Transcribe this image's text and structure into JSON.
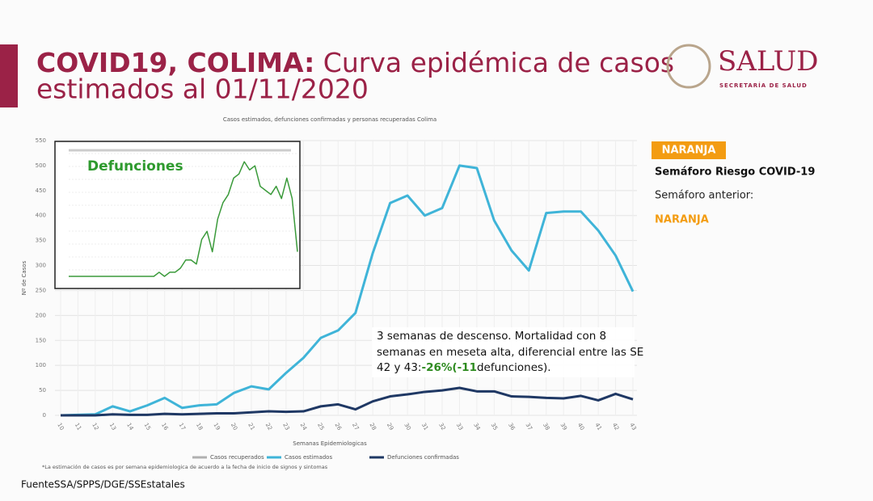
{
  "slide": {
    "title_bold": "COVID19, COLIMA:",
    "title_rest": " Curva epidémica de casos",
    "title_line2": "estimados al 01/11/2020",
    "logo": "SALUD",
    "logo_sub": "SECRETARÍA DE SALUD",
    "badge": "NARANJA",
    "semaforo": "Semáforo Riesgo COVID-19",
    "anterior": "Semáforo anterior:",
    "anterior_value": "NARANJA",
    "annotation": {
      "line1": "3 semanas de descenso. Mortalidad con 8",
      "line2": "semanas en meseta alta, diferencial entre las SE",
      "line3a": "42 y 43:",
      "highlight": "-26%(-11",
      "line3b": "defunciones)."
    },
    "source": "FuenteSSA/SPPS/DGE/SSEstatales"
  },
  "chart_data": [
    {
      "type": "line",
      "title": "Casos estimados, defunciones confirmadas y personas recuperadas Colima",
      "y_label": "Nº de Casos",
      "x_label": "Semanas Epidemiologicas",
      "footnote": "*La estimación de casos es por semana epidemiologica de acuerdo a la fecha de inicio de signos y sintomas",
      "categories": [
        "10",
        "11",
        "12",
        "13",
        "14",
        "15",
        "16",
        "17",
        "18",
        "19",
        "20",
        "21",
        "22",
        "23",
        "24",
        "25",
        "26",
        "27",
        "28",
        "29",
        "30",
        "31",
        "32",
        "33",
        "34",
        "35",
        "36",
        "37",
        "38",
        "39",
        "40",
        "41",
        "42",
        "43"
      ],
      "ylim": [
        0,
        550
      ],
      "yticks": [
        0,
        50,
        100,
        150,
        200,
        250,
        300,
        350,
        400,
        450,
        500,
        550
      ],
      "grid": true,
      "series": [
        {
          "name": "Casos recuperados",
          "color": "#b0b0b0",
          "values": [
            null,
            null,
            null,
            null,
            null,
            null,
            null,
            null,
            null,
            null,
            null,
            null,
            null,
            null,
            null,
            null,
            null,
            null,
            null,
            null,
            null,
            null,
            null,
            null,
            null,
            null,
            null,
            null,
            null,
            null,
            null,
            null,
            null,
            null
          ]
        },
        {
          "name": "Casos estimados",
          "color": "#3fb4d8",
          "values": [
            0,
            1,
            2,
            18,
            8,
            20,
            35,
            15,
            20,
            22,
            45,
            58,
            52,
            85,
            115,
            155,
            170,
            205,
            325,
            425,
            440,
            400,
            415,
            500,
            495,
            390,
            330,
            290,
            405,
            408,
            408,
            370,
            320,
            248
          ]
        },
        {
          "name": "Defunciones confirmadas",
          "color": "#1f3864",
          "values": [
            0,
            0,
            0,
            2,
            1,
            1,
            3,
            2,
            3,
            4,
            4,
            6,
            8,
            7,
            8,
            18,
            22,
            12,
            28,
            38,
            42,
            47,
            50,
            55,
            48,
            48,
            38,
            37,
            35,
            34,
            39,
            30,
            43,
            32
          ]
        }
      ]
    },
    {
      "type": "line",
      "title": "Defunciones",
      "ylim": [
        0,
        30
      ],
      "series": [
        {
          "color": "#3a9a3a",
          "values": [
            0,
            0,
            0,
            0,
            0,
            0,
            0,
            0,
            0,
            0,
            0,
            0,
            0,
            0,
            0,
            0,
            0,
            1,
            0,
            1,
            1,
            2,
            4,
            4,
            3,
            9,
            11,
            6,
            14,
            18,
            20,
            24,
            25,
            28,
            26,
            27,
            22,
            21,
            20,
            22,
            19,
            24,
            19,
            6
          ]
        }
      ]
    }
  ]
}
